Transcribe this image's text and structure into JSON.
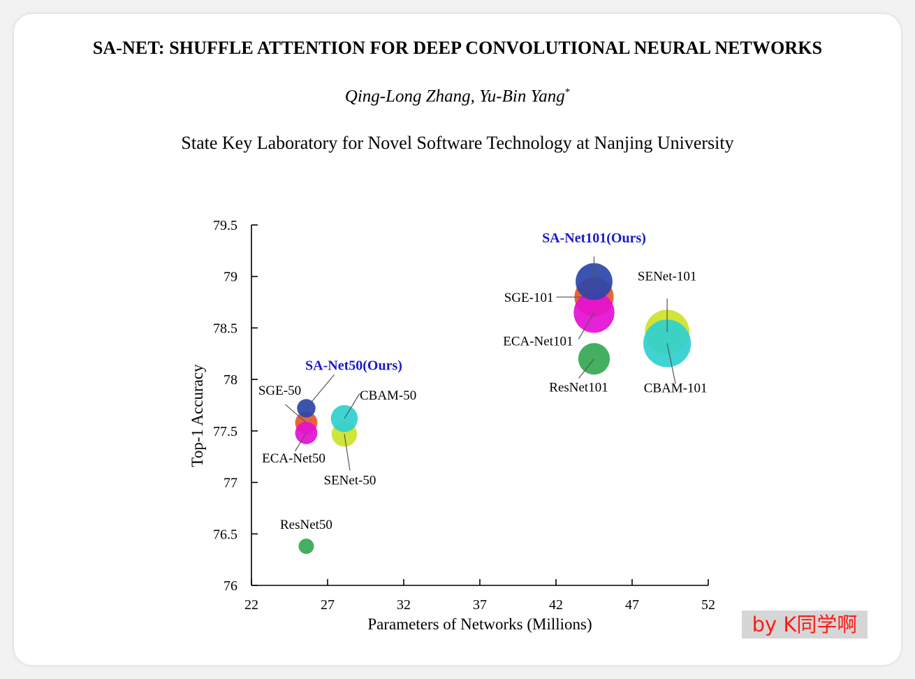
{
  "paper": {
    "title": "SA-NET: SHUFFLE ATTENTION FOR DEEP CONVOLUTIONAL NEURAL NETWORKS",
    "authors": "Qing-Long Zhang, Yu-Bin Yang",
    "author_mark": "*",
    "affiliation": "State Key Laboratory for Novel Software Technology at Nanjing University"
  },
  "watermark": "by K同学啊",
  "colors": {
    "highlight_label": "#1a1acc",
    "watermark_text": "#ff1a1a"
  },
  "chart_data": {
    "type": "scatter",
    "xlabel": "Parameters of Networks  (Millions)",
    "ylabel": "Top-1 Accuracy",
    "xlim": [
      22,
      52
    ],
    "ylim": [
      76,
      79.5
    ],
    "xticks": [
      22,
      27,
      32,
      37,
      42,
      47,
      52
    ],
    "yticks": [
      76,
      76.5,
      77,
      77.5,
      78,
      78.5,
      79,
      79.5
    ],
    "legend": "none (labels annotate points)",
    "points": [
      {
        "label": "ResNet50",
        "x": 25.6,
        "y": 76.38,
        "size": 1.0,
        "color": "#34a853",
        "highlight": false
      },
      {
        "label": "SGE-50",
        "x": 25.6,
        "y": 77.58,
        "size": 1.45,
        "color": "#e8572a",
        "highlight": false
      },
      {
        "label": "ECA-Net50",
        "x": 25.6,
        "y": 77.48,
        "size": 1.45,
        "color": "#e40fd3",
        "highlight": false
      },
      {
        "label": "SA-Net50(Ours)",
        "x": 25.6,
        "y": 77.72,
        "size": 1.2,
        "color": "#2b45aa",
        "highlight": true
      },
      {
        "label": "SENet-50",
        "x": 28.1,
        "y": 77.47,
        "size": 1.65,
        "color": "#cde228",
        "highlight": false
      },
      {
        "label": "CBAM-50",
        "x": 28.1,
        "y": 77.62,
        "size": 1.75,
        "color": "#2fd0cf",
        "highlight": false
      },
      {
        "label": "ResNet101",
        "x": 44.5,
        "y": 78.2,
        "size": 2.05,
        "color": "#34a853",
        "highlight": false
      },
      {
        "label": "SGE-101",
        "x": 44.5,
        "y": 78.8,
        "size": 2.55,
        "color": "#e8572a",
        "highlight": false
      },
      {
        "label": "ECA-Net101",
        "x": 44.5,
        "y": 78.65,
        "size": 2.65,
        "color": "#e40fd3",
        "highlight": false
      },
      {
        "label": "SA-Net101(Ours)",
        "x": 44.5,
        "y": 78.95,
        "size": 2.4,
        "color": "#2b45aa",
        "highlight": true
      },
      {
        "label": "SENet-101",
        "x": 49.3,
        "y": 78.46,
        "size": 2.9,
        "color": "#cde228",
        "highlight": false
      },
      {
        "label": "CBAM-101",
        "x": 49.3,
        "y": 78.35,
        "size": 3.1,
        "color": "#2fd0cf",
        "highlight": false
      }
    ]
  }
}
